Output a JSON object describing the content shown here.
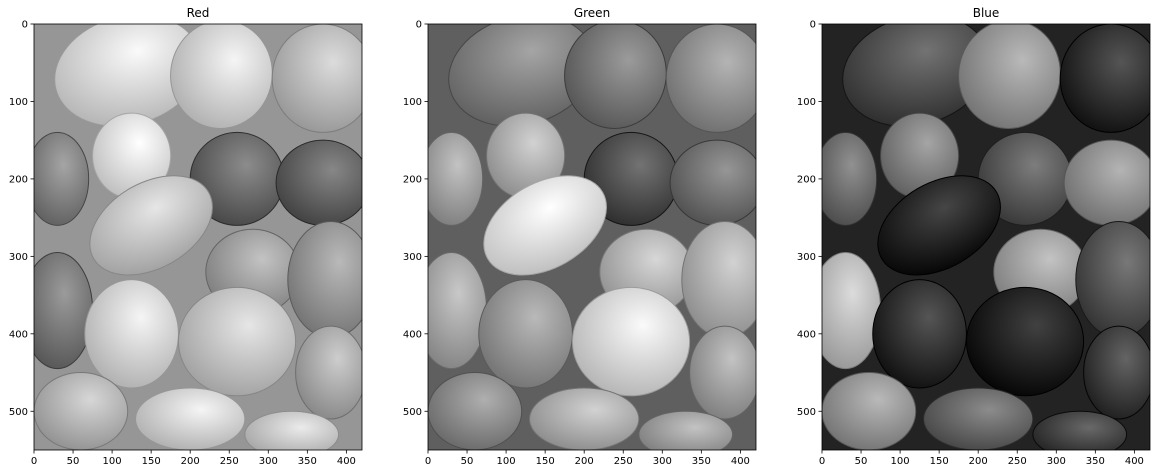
{
  "chart_data": [
    {
      "type": "image",
      "title": "Red",
      "xlim": [
        0,
        420
      ],
      "ylim": [
        550,
        0
      ],
      "xticks": [
        0,
        50,
        100,
        150,
        200,
        250,
        300,
        350,
        400
      ],
      "yticks": [
        0,
        100,
        200,
        300,
        400,
        500
      ]
    },
    {
      "type": "image",
      "title": "Green",
      "xlim": [
        0,
        420
      ],
      "ylim": [
        550,
        0
      ],
      "xticks": [
        0,
        50,
        100,
        150,
        200,
        250,
        300,
        350,
        400
      ],
      "yticks": [
        0,
        100,
        200,
        300,
        400,
        500
      ]
    },
    {
      "type": "image",
      "title": "Blue",
      "xlim": [
        0,
        420
      ],
      "ylim": [
        550,
        0
      ],
      "xticks": [
        0,
        50,
        100,
        150,
        200,
        250,
        300,
        350,
        400
      ],
      "yticks": [
        0,
        100,
        200,
        300,
        400,
        500
      ]
    }
  ]
}
